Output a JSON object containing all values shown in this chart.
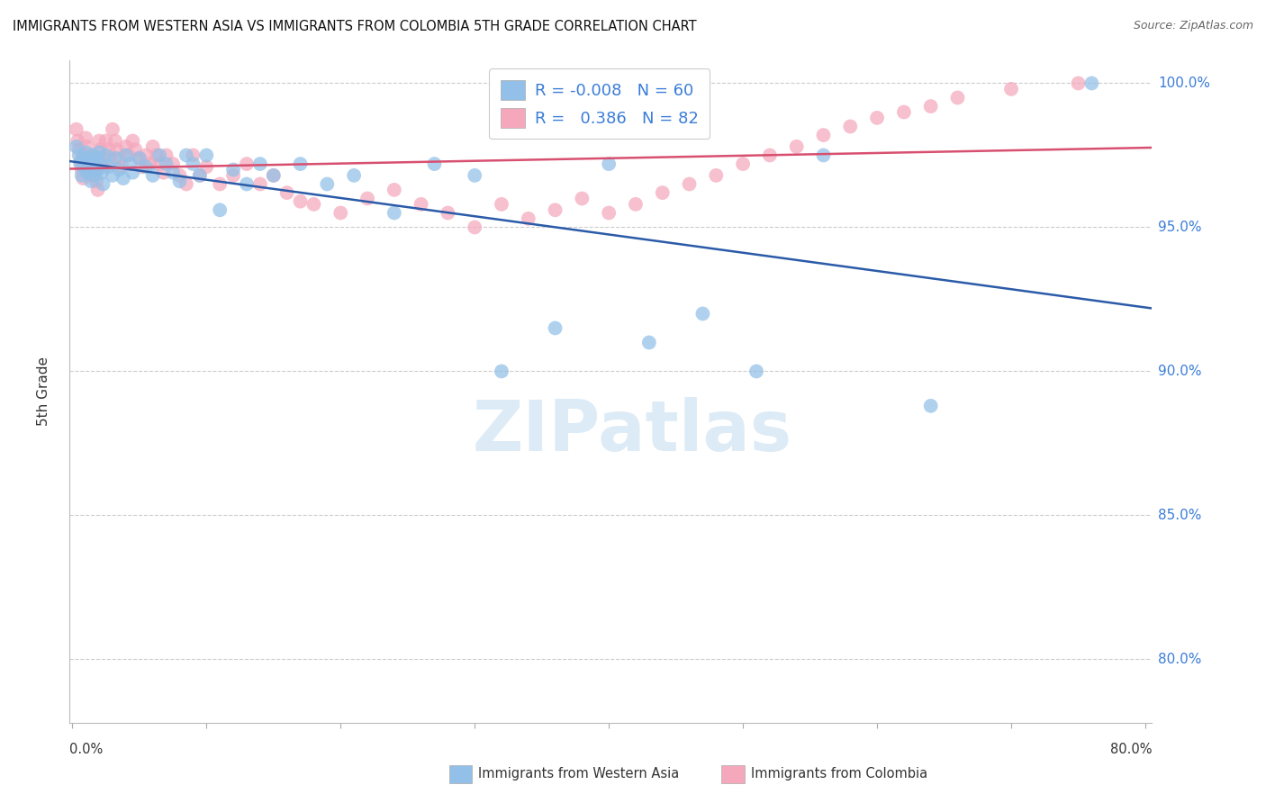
{
  "title": "IMMIGRANTS FROM WESTERN ASIA VS IMMIGRANTS FROM COLOMBIA 5TH GRADE CORRELATION CHART",
  "source": "Source: ZipAtlas.com",
  "ylabel": "5th Grade",
  "R_blue": -0.008,
  "N_blue": 60,
  "R_pink": 0.386,
  "N_pink": 82,
  "blue_color": "#92C0E8",
  "pink_color": "#F5A8BC",
  "trend_blue_color": "#2B5BA8",
  "trend_pink_color": "#D85070",
  "bg_color": "#FFFFFF",
  "grid_color": "#CCCCCC",
  "text_color": "#333333",
  "axis_label_color": "#3B7DD8",
  "ylim": [
    0.778,
    1.008
  ],
  "xlim": [
    -0.002,
    0.805
  ],
  "yticks": [
    1.0,
    0.95,
    0.9,
    0.85,
    0.8
  ],
  "ytick_labels": [
    "100.0%",
    "95.0%",
    "90.0%",
    "85.0%",
    "80.0%"
  ],
  "legend_blue": "Immigrants from Western Asia",
  "legend_pink": "Immigrants from Colombia",
  "blue_x": [
    0.003,
    0.005,
    0.006,
    0.007,
    0.008,
    0.009,
    0.01,
    0.011,
    0.012,
    0.013,
    0.014,
    0.015,
    0.016,
    0.017,
    0.018,
    0.019,
    0.02,
    0.021,
    0.022,
    0.023,
    0.025,
    0.027,
    0.03,
    0.032,
    0.035,
    0.038,
    0.04,
    0.043,
    0.045,
    0.05,
    0.055,
    0.06,
    0.065,
    0.07,
    0.075,
    0.08,
    0.085,
    0.09,
    0.095,
    0.1,
    0.11,
    0.12,
    0.13,
    0.14,
    0.15,
    0.17,
    0.19,
    0.21,
    0.24,
    0.27,
    0.3,
    0.32,
    0.36,
    0.4,
    0.43,
    0.47,
    0.51,
    0.56,
    0.64,
    0.76
  ],
  "blue_y": [
    0.978,
    0.975,
    0.972,
    0.968,
    0.974,
    0.971,
    0.976,
    0.969,
    0.973,
    0.97,
    0.966,
    0.975,
    0.972,
    0.968,
    0.974,
    0.97,
    0.976,
    0.972,
    0.969,
    0.965,
    0.975,
    0.971,
    0.968,
    0.974,
    0.97,
    0.967,
    0.975,
    0.972,
    0.969,
    0.974,
    0.971,
    0.968,
    0.975,
    0.972,
    0.969,
    0.966,
    0.975,
    0.972,
    0.968,
    0.975,
    0.956,
    0.97,
    0.965,
    0.972,
    0.968,
    0.972,
    0.965,
    0.968,
    0.955,
    0.972,
    0.968,
    0.9,
    0.915,
    0.972,
    0.91,
    0.92,
    0.9,
    0.975,
    0.888,
    1.0
  ],
  "pink_x": [
    0.003,
    0.004,
    0.005,
    0.006,
    0.007,
    0.008,
    0.009,
    0.01,
    0.011,
    0.012,
    0.013,
    0.014,
    0.015,
    0.016,
    0.017,
    0.018,
    0.019,
    0.02,
    0.021,
    0.022,
    0.023,
    0.025,
    0.027,
    0.028,
    0.03,
    0.032,
    0.033,
    0.035,
    0.037,
    0.04,
    0.042,
    0.045,
    0.047,
    0.05,
    0.052,
    0.055,
    0.058,
    0.06,
    0.063,
    0.065,
    0.068,
    0.07,
    0.075,
    0.08,
    0.085,
    0.09,
    0.095,
    0.1,
    0.11,
    0.12,
    0.13,
    0.14,
    0.15,
    0.16,
    0.17,
    0.18,
    0.2,
    0.22,
    0.24,
    0.26,
    0.28,
    0.3,
    0.32,
    0.34,
    0.36,
    0.38,
    0.4,
    0.42,
    0.44,
    0.46,
    0.48,
    0.5,
    0.52,
    0.54,
    0.56,
    0.58,
    0.6,
    0.62,
    0.64,
    0.66,
    0.7,
    0.75
  ],
  "pink_y": [
    0.984,
    0.98,
    0.977,
    0.973,
    0.97,
    0.967,
    0.975,
    0.981,
    0.978,
    0.974,
    0.971,
    0.968,
    0.975,
    0.972,
    0.969,
    0.966,
    0.963,
    0.98,
    0.977,
    0.974,
    0.971,
    0.98,
    0.977,
    0.974,
    0.984,
    0.98,
    0.977,
    0.974,
    0.971,
    0.978,
    0.975,
    0.98,
    0.977,
    0.974,
    0.971,
    0.975,
    0.972,
    0.978,
    0.975,
    0.972,
    0.969,
    0.975,
    0.972,
    0.968,
    0.965,
    0.975,
    0.968,
    0.971,
    0.965,
    0.968,
    0.972,
    0.965,
    0.968,
    0.962,
    0.959,
    0.958,
    0.955,
    0.96,
    0.963,
    0.958,
    0.955,
    0.95,
    0.958,
    0.953,
    0.956,
    0.96,
    0.955,
    0.958,
    0.962,
    0.965,
    0.968,
    0.972,
    0.975,
    0.978,
    0.982,
    0.985,
    0.988,
    0.99,
    0.992,
    0.995,
    0.998,
    1.0
  ]
}
